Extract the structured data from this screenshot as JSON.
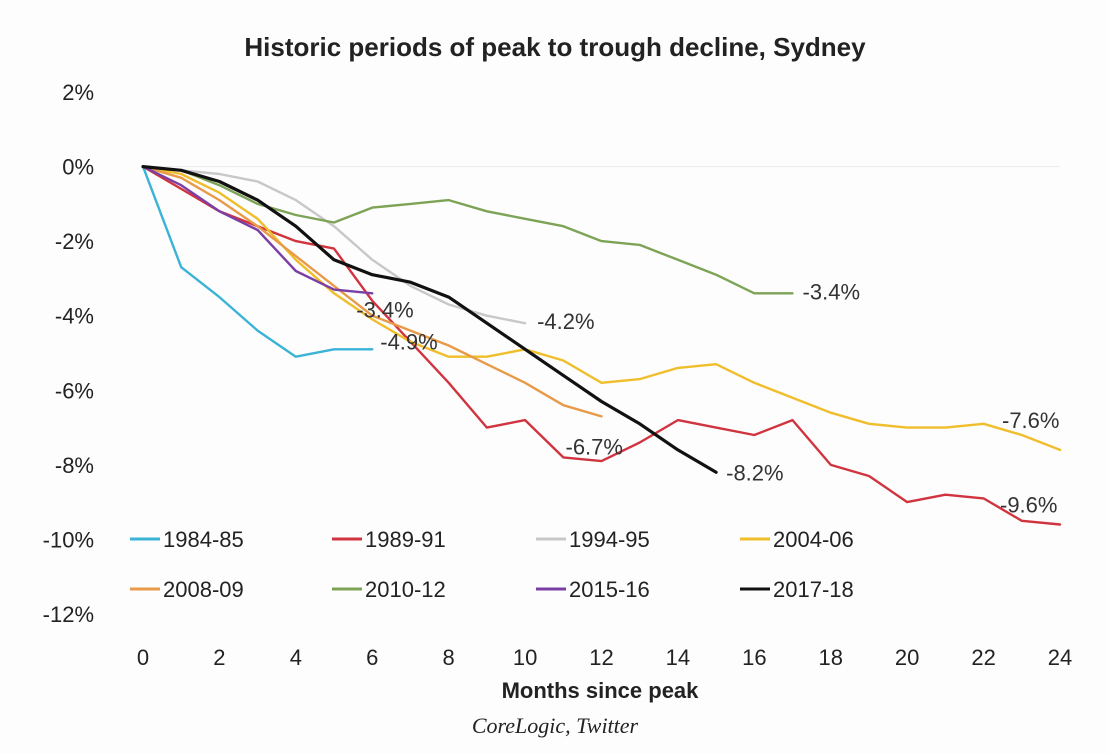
{
  "chart_data": {
    "type": "line",
    "title": "Historic periods of peak to trough decline, Sydney",
    "xlabel": "Months since peak",
    "ylabel": "",
    "source": "CoreLogic, Twitter",
    "xlim": [
      0,
      24
    ],
    "ylim": [
      -12,
      2
    ],
    "x_ticks": [
      "0",
      "2",
      "4",
      "6",
      "8",
      "10",
      "12",
      "14",
      "16",
      "18",
      "20",
      "22",
      "24"
    ],
    "y_ticks": [
      "2%",
      "0%",
      "-2%",
      "-4%",
      "-6%",
      "-8%",
      "-10%",
      "-12%"
    ],
    "legend_position": "bottom-left, inside plot",
    "series": [
      {
        "name": "1984-85",
        "color": "#3bb3d6",
        "end_label": "-4.9%",
        "x": [
          0,
          1,
          2,
          3,
          4,
          5,
          6
        ],
        "y": [
          0,
          -2.7,
          -3.5,
          -4.4,
          -5.1,
          -4.9,
          -4.9
        ]
      },
      {
        "name": "1989-91",
        "color": "#d0343f",
        "end_label": "-9.6%",
        "x": [
          0,
          1,
          2,
          3,
          4,
          5,
          6,
          7,
          8,
          9,
          10,
          11,
          12,
          13,
          14,
          15,
          16,
          17,
          18,
          19,
          20,
          21,
          22,
          23,
          24
        ],
        "y": [
          0,
          -0.6,
          -1.2,
          -1.6,
          -2.0,
          -2.2,
          -3.6,
          -4.7,
          -5.8,
          -7.0,
          -6.8,
          -7.8,
          -7.9,
          -7.4,
          -6.8,
          -7.0,
          -7.2,
          -6.8,
          -8.0,
          -8.3,
          -9.0,
          -8.8,
          -8.9,
          -9.5,
          -9.6
        ]
      },
      {
        "name": "1994-95",
        "color": "#c8c8c8",
        "end_label": "-4.2%",
        "x": [
          0,
          1,
          2,
          3,
          4,
          5,
          6,
          7,
          8,
          9,
          10
        ],
        "y": [
          0,
          -0.1,
          -0.2,
          -0.4,
          -0.9,
          -1.6,
          -2.5,
          -3.2,
          -3.7,
          -4.0,
          -4.2
        ]
      },
      {
        "name": "2004-06",
        "color": "#f0bd2b",
        "end_label": "-7.6%",
        "x": [
          0,
          1,
          2,
          3,
          4,
          5,
          6,
          7,
          8,
          9,
          10,
          11,
          12,
          13,
          14,
          15,
          16,
          17,
          18,
          19,
          20,
          21,
          22,
          23,
          24
        ],
        "y": [
          0,
          -0.2,
          -0.7,
          -1.4,
          -2.5,
          -3.4,
          -4.1,
          -4.7,
          -5.1,
          -5.1,
          -4.9,
          -5.2,
          -5.8,
          -5.7,
          -5.4,
          -5.3,
          -5.8,
          -6.2,
          -6.6,
          -6.9,
          -7.0,
          -7.0,
          -6.9,
          -7.2,
          -7.6
        ]
      },
      {
        "name": "2008-09",
        "color": "#e89a48",
        "end_label": "-6.7%",
        "x": [
          0,
          1,
          2,
          3,
          4,
          5,
          6,
          7,
          8,
          9,
          10,
          11,
          12
        ],
        "y": [
          0,
          -0.3,
          -0.9,
          -1.6,
          -2.4,
          -3.2,
          -4.0,
          -4.4,
          -4.8,
          -5.3,
          -5.8,
          -6.4,
          -6.7
        ]
      },
      {
        "name": "2010-12",
        "color": "#7da356",
        "end_label": "-3.4%",
        "x": [
          0,
          1,
          2,
          3,
          4,
          5,
          6,
          7,
          8,
          9,
          10,
          11,
          12,
          13,
          14,
          15,
          16,
          17
        ],
        "y": [
          0,
          -0.1,
          -0.5,
          -1.0,
          -1.3,
          -1.5,
          -1.1,
          -1.0,
          -0.9,
          -1.2,
          -1.4,
          -1.6,
          -2.0,
          -2.1,
          -2.5,
          -2.9,
          -3.4,
          -3.4
        ]
      },
      {
        "name": "2015-16",
        "color": "#7a3fa5",
        "end_label": "-3.4%",
        "x": [
          0,
          1,
          2,
          3,
          4,
          5,
          6
        ],
        "y": [
          0,
          -0.5,
          -1.2,
          -1.7,
          -2.8,
          -3.3,
          -3.4
        ]
      },
      {
        "name": "2017-18",
        "color": "#111111",
        "end_label": "-8.2%",
        "x": [
          0,
          1,
          2,
          3,
          4,
          5,
          6,
          7,
          8,
          9,
          10,
          11,
          12,
          13,
          14,
          15
        ],
        "y": [
          0,
          -0.1,
          -0.4,
          -0.9,
          -1.6,
          -2.5,
          -2.9,
          -3.1,
          -3.5,
          -4.2,
          -4.9,
          -5.6,
          -6.3,
          -6.9,
          -7.6,
          -8.2
        ]
      }
    ]
  }
}
